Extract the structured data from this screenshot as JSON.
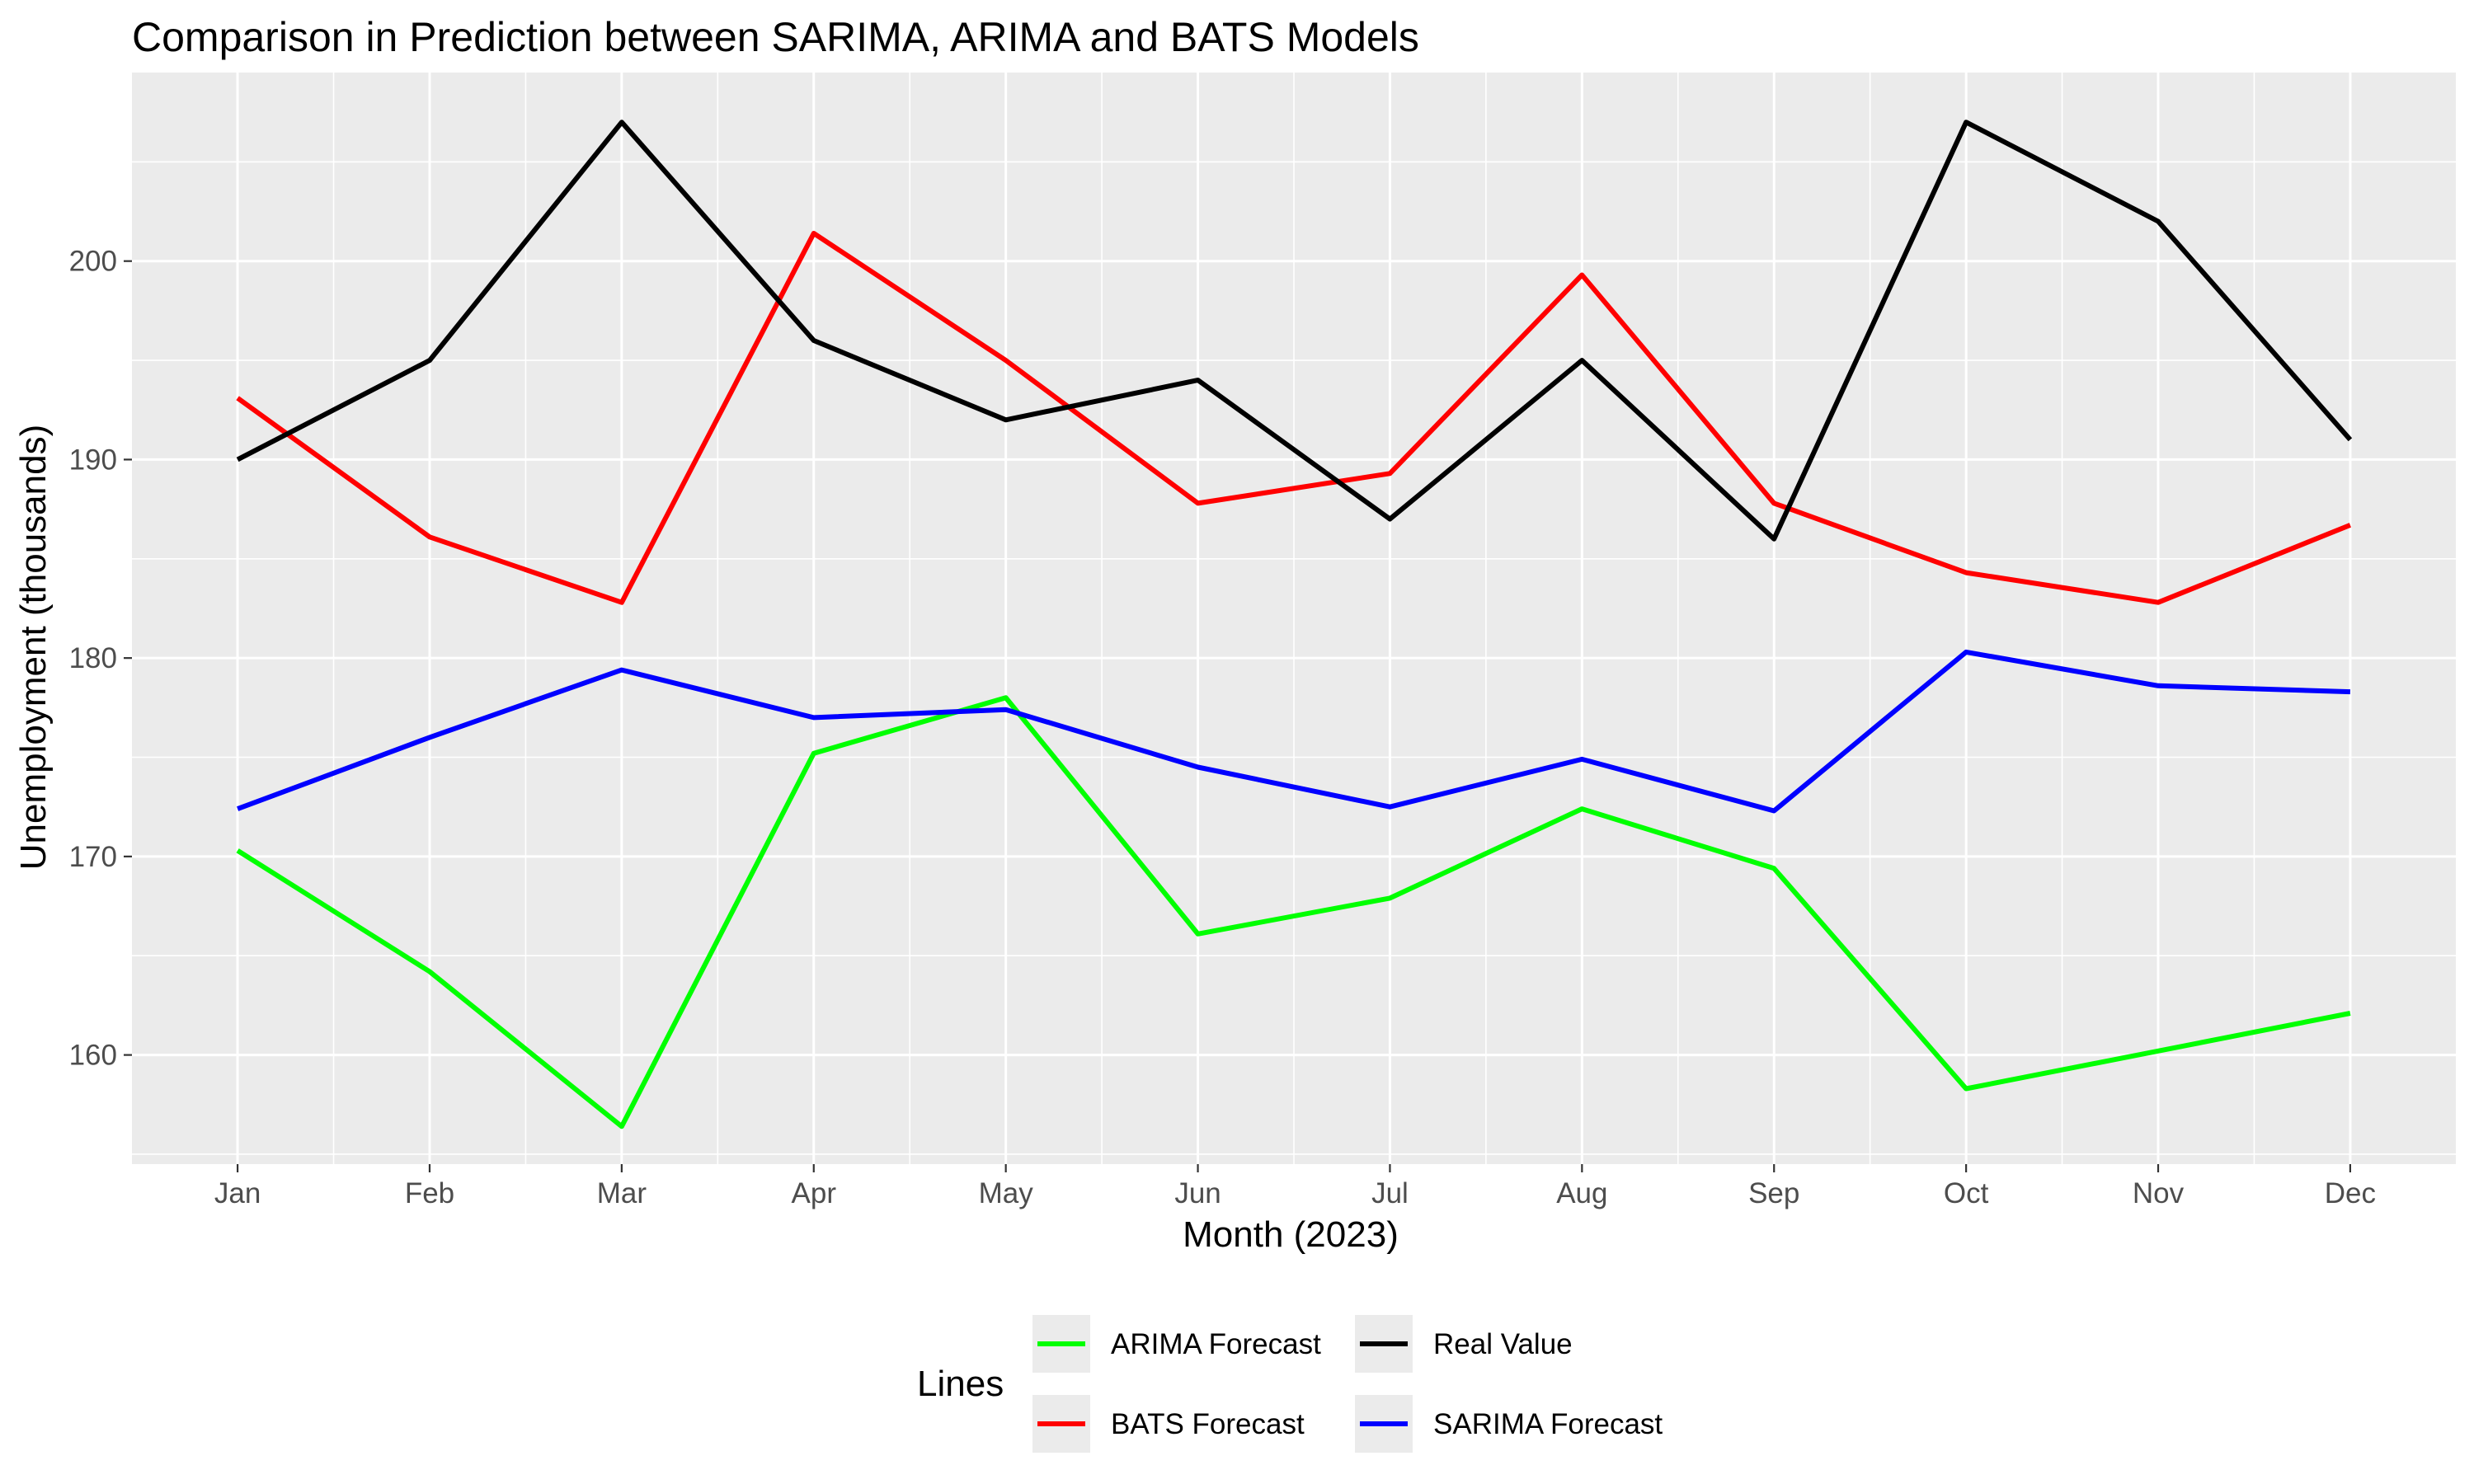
{
  "chart_data": {
    "type": "line",
    "title": "Comparison in Prediction between SARIMA, ARIMA  and BATS Models",
    "xlabel": "Month (2023)",
    "ylabel": "Unemployment (thousands)",
    "categories": [
      "Jan",
      "Feb",
      "Mar",
      "Apr",
      "May",
      "Jun",
      "Jul",
      "Aug",
      "Sep",
      "Oct",
      "Nov",
      "Dec"
    ],
    "ylim": [
      154.5,
      209.5
    ],
    "yticks": [
      160,
      170,
      180,
      190,
      200
    ],
    "grid": true,
    "legend_title": "Lines",
    "legend_position": "bottom",
    "series": [
      {
        "name": "ARIMA Forecast",
        "color": "#00ff00",
        "values": [
          170.3,
          164.2,
          156.4,
          175.2,
          178.0,
          166.1,
          167.9,
          172.4,
          169.4,
          158.3,
          160.2,
          162.1
        ]
      },
      {
        "name": "BATS Forecast",
        "color": "#ff0000",
        "values": [
          193.1,
          186.1,
          182.8,
          201.4,
          195.0,
          187.8,
          189.3,
          199.3,
          187.8,
          184.3,
          182.8,
          186.7
        ]
      },
      {
        "name": "Real Value",
        "color": "#000000",
        "values": [
          190,
          195,
          207,
          196,
          192,
          194,
          187,
          195,
          186,
          207,
          202,
          191
        ]
      },
      {
        "name": "SARIMA Forecast",
        "color": "#0000ff",
        "values": [
          172.4,
          176.0,
          179.4,
          177.0,
          177.4,
          174.5,
          172.5,
          174.9,
          172.3,
          180.3,
          178.6,
          178.3
        ]
      }
    ]
  }
}
